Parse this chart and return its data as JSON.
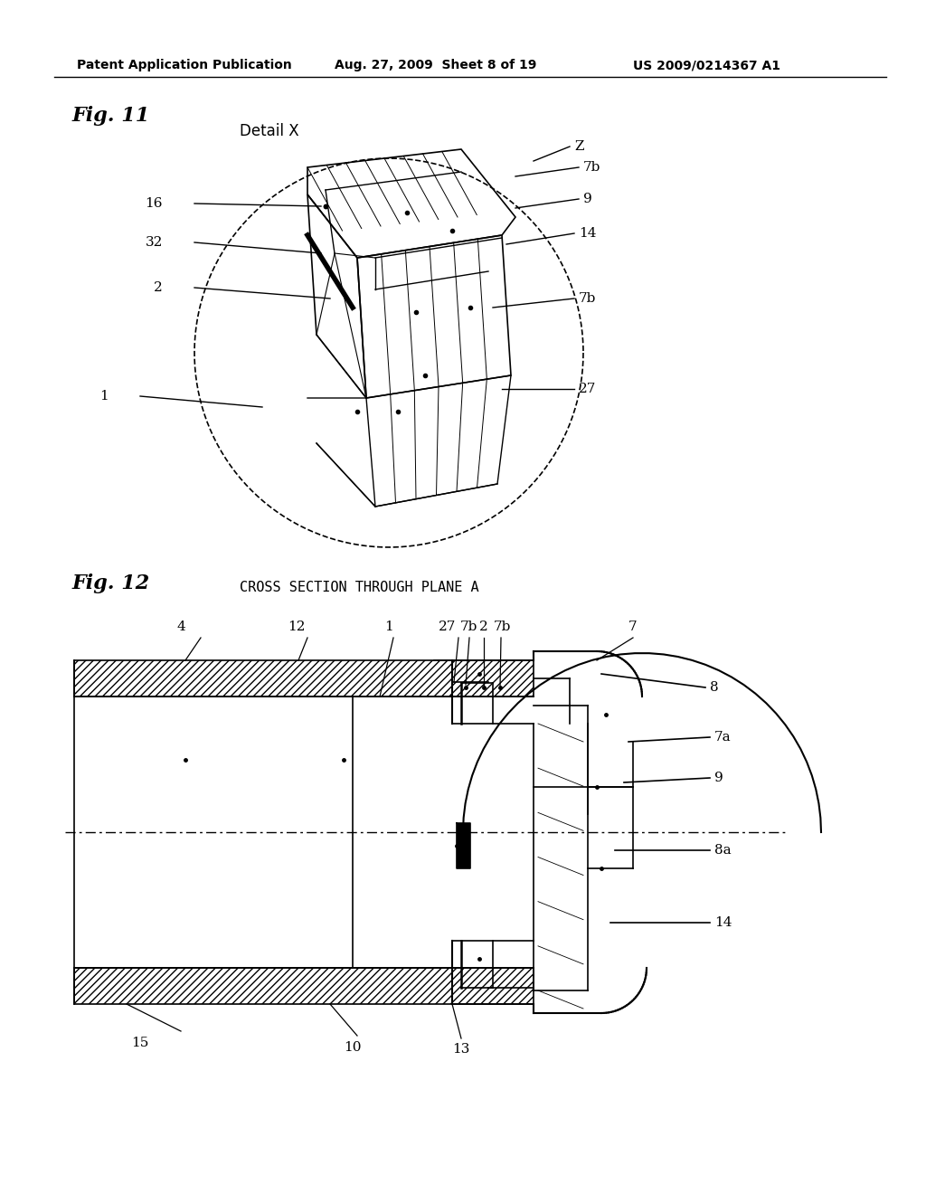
{
  "header_left": "Patent Application Publication",
  "header_mid": "Aug. 27, 2009  Sheet 8 of 19",
  "header_right": "US 2009/0214367 A1",
  "fig11_label": "Fig. 11",
  "fig11_subtitle": "Detail X",
  "fig12_label": "Fig. 12",
  "fig12_subtitle": "CROSS SECTION THROUGH PLANE A",
  "bg_color": "#ffffff",
  "line_color": "#000000",
  "hatch_color": "#000000"
}
